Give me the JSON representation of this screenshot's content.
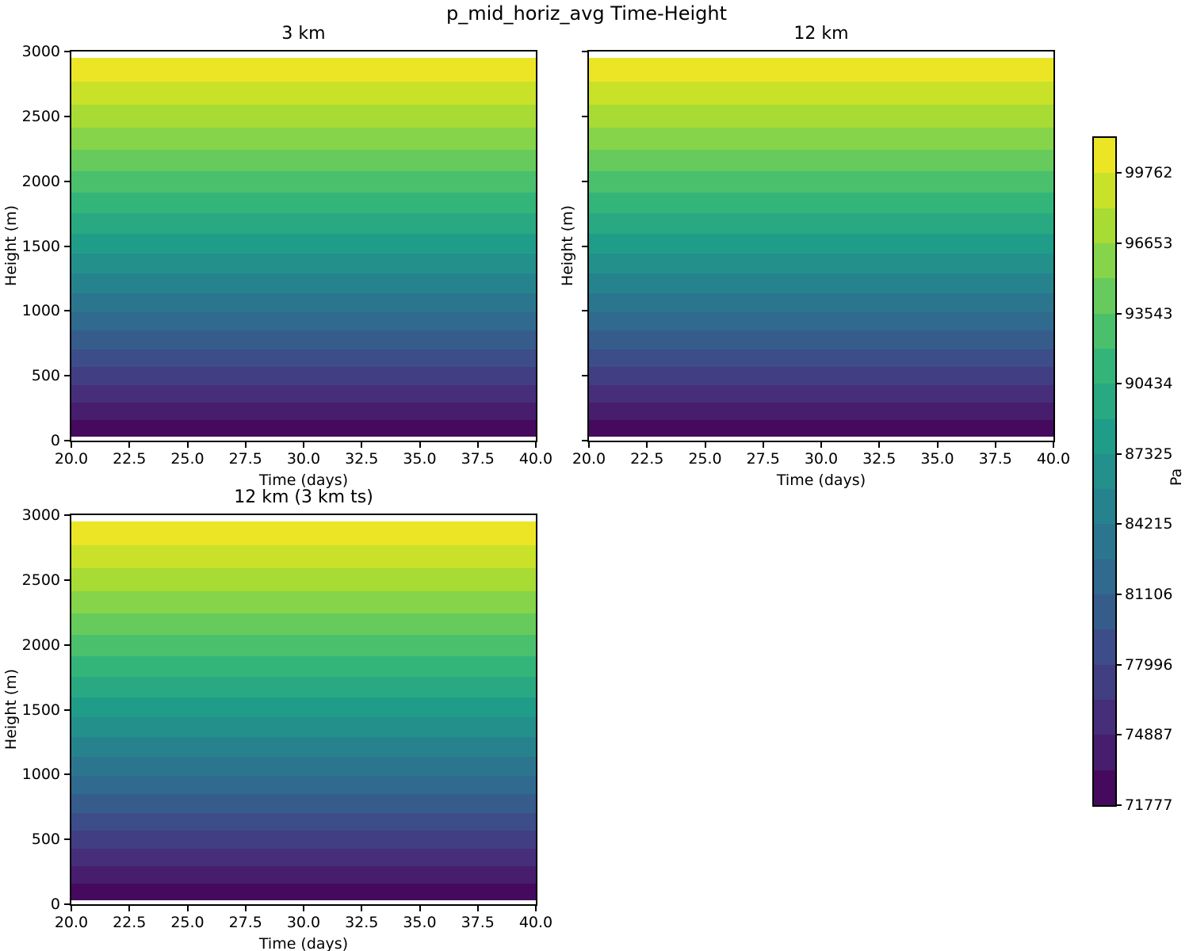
{
  "chart_data": {
    "type": "heatmap",
    "variant": "filled-contour-time-height",
    "title": "p_mid_horiz_avg Time-Height",
    "units": "Pa",
    "subplots": [
      {
        "title": "3 km",
        "xlabel": "Time (days)",
        "ylabel": "Height (m)",
        "xlim": [
          20.0,
          40.0
        ],
        "ylim": [
          0,
          3000
        ],
        "ytick_labels_visible": true
      },
      {
        "title": "12 km",
        "xlabel": "Time (days)",
        "ylabel": "Height (m)",
        "xlim": [
          20.0,
          40.0
        ],
        "ylim": [
          0,
          3000
        ],
        "ytick_labels_visible": false
      },
      {
        "title": "12 km (3 km ts)",
        "xlabel": "Time (days)",
        "ylabel": "Height (m)",
        "xlim": [
          20.0,
          40.0
        ],
        "ylim": [
          0,
          3000
        ],
        "ytick_labels_visible": true
      }
    ],
    "xticks": [
      20.0,
      22.5,
      25.0,
      27.5,
      30.0,
      32.5,
      35.0,
      37.5,
      40.0
    ],
    "xtick_labels": [
      "20.0",
      "22.5",
      "25.0",
      "27.5",
      "30.0",
      "32.5",
      "35.0",
      "37.5",
      "40.0"
    ],
    "yticks": [
      0,
      500,
      1000,
      1500,
      2000,
      2500,
      3000
    ],
    "ytick_labels": [
      "0",
      "500",
      "1000",
      "1500",
      "2000",
      "2500",
      "3000"
    ],
    "field_description": "Horizontally uniform pressure bands, constant in time, decreasing with height from ~101300 Pa near the surface to below 71777 Pa above 2949 m; all three panels are visually identical",
    "contour_levels_pa": [
      71777,
      73332,
      74887,
      76441,
      77996,
      79551,
      81106,
      82660,
      84215,
      85770,
      87325,
      88879,
      90434,
      91989,
      93543,
      95098,
      96653,
      98208,
      99762,
      101317
    ],
    "band_boundary_heights_m": [
      30,
      161,
      294,
      429,
      566,
      706,
      848,
      992,
      1139,
      1288,
      1441,
      1595,
      1753,
      1914,
      2078,
      2245,
      2416,
      2589,
      2767,
      2949
    ],
    "band_colors_bottom_to_top": [
      "#450a5d",
      "#471d6e",
      "#462e7b",
      "#413e83",
      "#3c4d8a",
      "#365c8c",
      "#306a8e",
      "#2b768e",
      "#26838e",
      "#23908c",
      "#1f9d89",
      "#29a982",
      "#33b57a",
      "#4bc06c",
      "#66cb5c",
      "#86d449",
      "#a8db33",
      "#cae129",
      "#ece526"
    ],
    "colorbar": {
      "label": "Pa",
      "orientation": "vertical",
      "colormap": "viridis_r",
      "tick_labels_top_to_bottom": [
        "99762",
        "96653",
        "93543",
        "90434",
        "87325",
        "84215",
        "81106",
        "77996",
        "74887",
        "71777"
      ],
      "min_level": 71777,
      "max_level": 101317
    }
  }
}
